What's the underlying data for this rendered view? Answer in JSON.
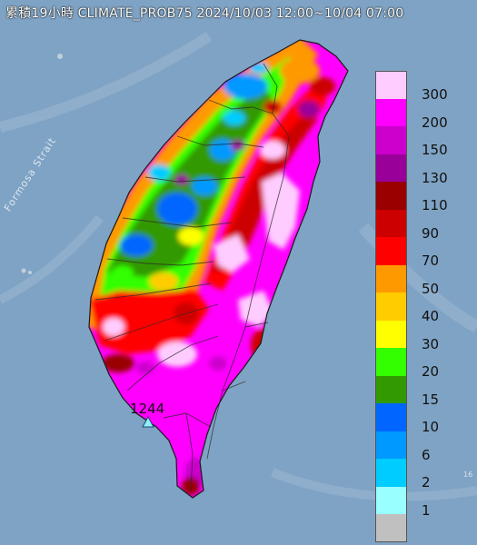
{
  "title": "累積19小時 CLIMATE_PROB75 2024/10/03 12:00~10/04 07:00",
  "sea_label": "Formosa Strait",
  "station": {
    "value": "1244"
  },
  "edge_tag": "16",
  "colors": {
    "sea": "#7fa3c4",
    "land_low": "#3aa0ff",
    "land_high": "#ff00ff"
  },
  "legend": [
    {
      "label": "300",
      "color": "#ffccff"
    },
    {
      "label": "200",
      "color": "#ff00ff"
    },
    {
      "label": "150",
      "color": "#cc00cc"
    },
    {
      "label": "130",
      "color": "#990099"
    },
    {
      "label": "110",
      "color": "#990000"
    },
    {
      "label": "90",
      "color": "#cc0000"
    },
    {
      "label": "70",
      "color": "#ff0000"
    },
    {
      "label": "50",
      "color": "#ff9900"
    },
    {
      "label": "40",
      "color": "#ffcc00"
    },
    {
      "label": "30",
      "color": "#ffff00"
    },
    {
      "label": "20",
      "color": "#33ff00"
    },
    {
      "label": "15",
      "color": "#339900"
    },
    {
      "label": "10",
      "color": "#0066ff"
    },
    {
      "label": "6",
      "color": "#0099ff"
    },
    {
      "label": "2",
      "color": "#00ccff"
    },
    {
      "label": "1",
      "color": "#99ffff"
    },
    {
      "label": "",
      "color": "#c0c0c0"
    }
  ]
}
